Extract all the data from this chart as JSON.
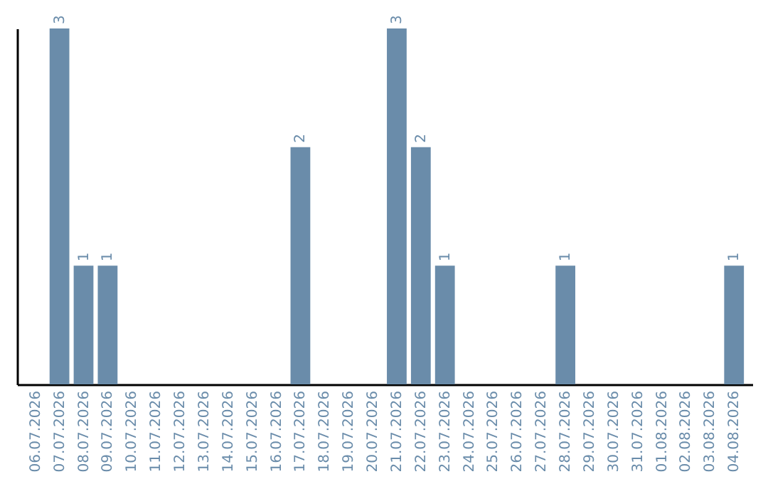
{
  "chart_data": {
    "type": "bar",
    "categories": [
      "06.07.2026",
      "07.07.2026",
      "08.07.2026",
      "09.07.2026",
      "10.07.2026",
      "11.07.2026",
      "12.07.2026",
      "13.07.2026",
      "14.07.2026",
      "15.07.2026",
      "16.07.2026",
      "17.07.2026",
      "18.07.2026",
      "19.07.2026",
      "20.07.2026",
      "21.07.2026",
      "22.07.2026",
      "23.07.2026",
      "24.07.2026",
      "25.07.2026",
      "26.07.2026",
      "27.07.2026",
      "28.07.2026",
      "29.07.2026",
      "30.07.2026",
      "31.07.2026",
      "01.08.2026",
      "02.08.2026",
      "03.08.2026",
      "04.08.2026"
    ],
    "values": [
      0,
      3,
      1,
      1,
      0,
      0,
      0,
      0,
      0,
      0,
      0,
      2,
      0,
      0,
      0,
      3,
      2,
      1,
      0,
      0,
      0,
      0,
      1,
      0,
      0,
      0,
      0,
      0,
      0,
      1
    ],
    "value_labels": [
      null,
      "3",
      "1",
      "1",
      null,
      null,
      null,
      null,
      null,
      null,
      null,
      "2",
      null,
      null,
      null,
      "3",
      "2",
      "1",
      null,
      null,
      null,
      null,
      "1",
      null,
      null,
      null,
      null,
      null,
      null,
      "1"
    ],
    "color": "#6a8caa",
    "tick_labels": "x"
  }
}
